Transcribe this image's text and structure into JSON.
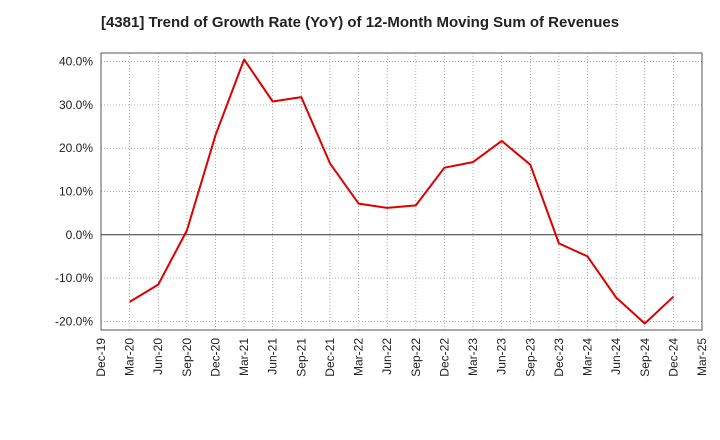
{
  "chart_data": {
    "type": "line",
    "title": "[4381]  Trend of Growth Rate (YoY) of 12-Month Moving Sum of Revenues",
    "xlabel": "",
    "ylabel": "",
    "x_ticks": [
      "Dec-19",
      "Mar-20",
      "Jun-20",
      "Sep-20",
      "Dec-20",
      "Mar-21",
      "Jun-21",
      "Sep-21",
      "Dec-21",
      "Mar-22",
      "Jun-22",
      "Sep-22",
      "Dec-22",
      "Mar-23",
      "Jun-23",
      "Sep-23",
      "Dec-23",
      "Mar-24",
      "Jun-24",
      "Sep-24",
      "Dec-24",
      "Mar-25"
    ],
    "y_ticks": [
      "40.0%",
      "30.0%",
      "20.0%",
      "10.0%",
      "0.0%",
      "-10.0%",
      "-20.0%"
    ],
    "y_tick_values": [
      40,
      30,
      20,
      10,
      0,
      -10,
      -20
    ],
    "ylim": [
      -22,
      42
    ],
    "grid": true,
    "series": [
      {
        "color": "#dd0000",
        "x": [
          "Mar-20",
          "Jun-20",
          "Sep-20",
          "Dec-20",
          "Mar-21",
          "Jun-21",
          "Sep-21",
          "Dec-21",
          "Mar-22",
          "Jun-22",
          "Sep-22",
          "Dec-22",
          "Mar-23",
          "Jun-23",
          "Sep-23",
          "Dec-23",
          "Mar-24",
          "Jun-24",
          "Sep-24",
          "Dec-24"
        ],
        "values": [
          -15.5,
          -11.5,
          1.0,
          23.0,
          40.5,
          30.8,
          31.8,
          16.5,
          7.2,
          6.2,
          6.8,
          15.5,
          16.8,
          21.7,
          16.2,
          -2.0,
          -5.0,
          -14.5,
          -20.5,
          -14.3
        ]
      }
    ]
  }
}
